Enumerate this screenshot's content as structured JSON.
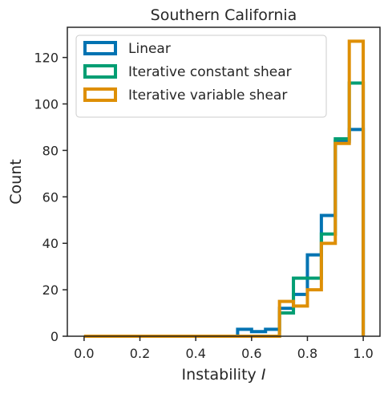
{
  "chart_data": {
    "type": "histogram-step",
    "title": "Southern California",
    "xlabel": "Instability",
    "xlabel_symbol": "I",
    "ylabel": "Count",
    "xlim": [
      -0.06,
      1.06
    ],
    "ylim": [
      0,
      133
    ],
    "xticks": [
      0.0,
      0.2,
      0.4,
      0.6,
      0.8,
      1.0
    ],
    "xtick_labels": [
      "0.0",
      "0.2",
      "0.4",
      "0.6",
      "0.8",
      "1.0"
    ],
    "yticks": [
      0,
      20,
      40,
      60,
      80,
      100,
      120
    ],
    "ytick_labels": [
      "0",
      "20",
      "40",
      "60",
      "80",
      "100",
      "120"
    ],
    "grid": false,
    "legend_position": "upper-left",
    "bin_edges": [
      0.0,
      0.05,
      0.1,
      0.15,
      0.2,
      0.25,
      0.3,
      0.35,
      0.4,
      0.45,
      0.5,
      0.55,
      0.6,
      0.65,
      0.7,
      0.75,
      0.8,
      0.85,
      0.9,
      0.95,
      1.0
    ],
    "series": [
      {
        "name": "Linear",
        "color": "#0173b2",
        "values": [
          0,
          0,
          0,
          0,
          0,
          0,
          0,
          0,
          0,
          0,
          0,
          3,
          2,
          3,
          12,
          18,
          35,
          52,
          84,
          89
        ]
      },
      {
        "name": "Iterative constant shear",
        "color": "#029e73",
        "values": [
          0,
          0,
          0,
          0,
          0,
          0,
          0,
          0,
          0,
          0,
          0,
          0,
          0,
          0,
          10,
          25,
          25,
          44,
          85,
          109
        ]
      },
      {
        "name": "Iterative variable shear",
        "color": "#de8f05",
        "values": [
          0,
          0,
          0,
          0,
          0,
          0,
          0,
          0,
          0,
          0,
          0,
          0,
          0,
          0,
          15,
          13,
          20,
          40,
          83,
          127
        ]
      }
    ]
  }
}
